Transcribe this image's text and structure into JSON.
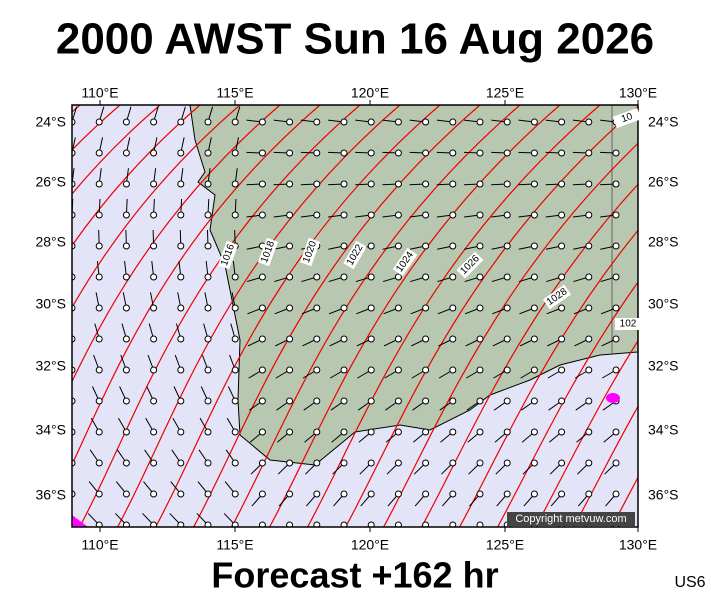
{
  "header": {
    "title": "2000 AWST Sun 16 Aug 2026"
  },
  "map": {
    "lon_labels_top": [
      "110°E",
      "115°E",
      "120°E",
      "125°E",
      "130°E"
    ],
    "lon_labels_bottom": [
      "110°E",
      "115°E",
      "120°E",
      "125°E",
      "130°E"
    ],
    "lat_labels_left": [
      "24°S",
      "26°S",
      "28°S",
      "30°S",
      "32°S",
      "34°S",
      "36°S"
    ],
    "lat_labels_right": [
      "24°S",
      "26°S",
      "28°S",
      "30°S",
      "32°S",
      "34°S",
      "36°S"
    ],
    "isobar_labels": [
      "1016",
      "1018",
      "1020",
      "1022",
      "1024",
      "1026",
      "1028",
      "10",
      "102"
    ],
    "copyright": "Copyright metvuw.com"
  },
  "footer": {
    "forecast": "Forecast +162 hr",
    "code": "US6"
  }
}
